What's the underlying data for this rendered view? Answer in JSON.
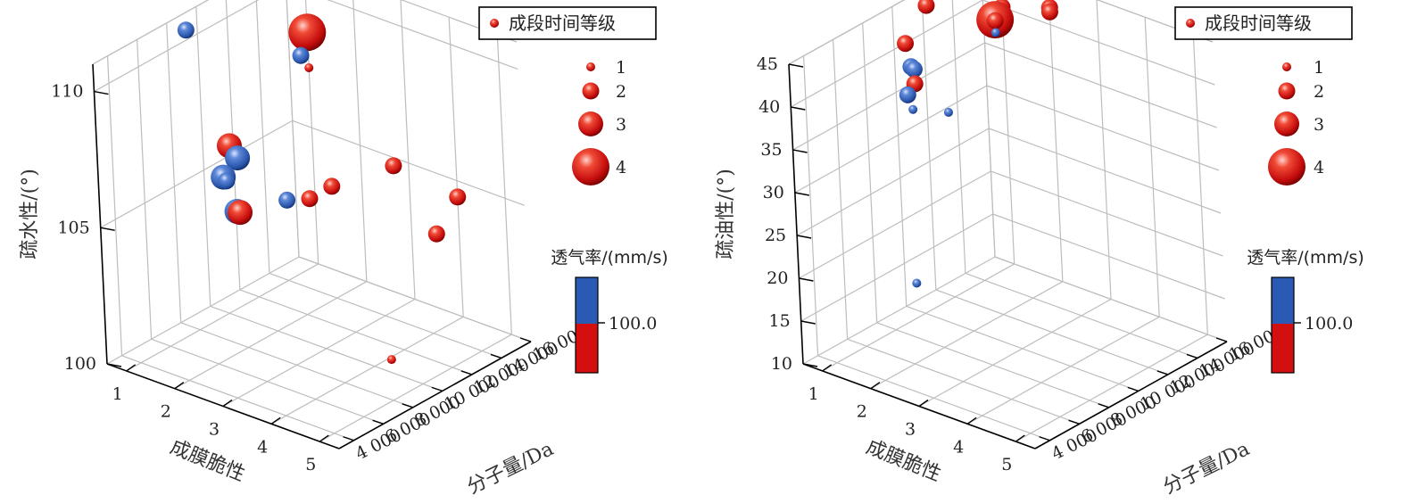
{
  "colors": {
    "high": "#2a5ab3",
    "low": "#d40f10"
  },
  "chart_data": [
    {
      "type": "scatter",
      "subtype": "3d-bubble",
      "xlabel": "成膜脆性",
      "ylabel": "分子量/Da",
      "zlabel": "疏水性/(°)",
      "xticks": [
        "1",
        "2",
        "3",
        "4",
        "5"
      ],
      "yticks": [
        "4 000",
        "6 000",
        "8 000",
        "10 000",
        "12 000",
        "14 000",
        "16 000"
      ],
      "zticks": [
        "100",
        "105",
        "110"
      ],
      "xlim": [
        0.6,
        5.4
      ],
      "ylim": [
        3000,
        16000
      ],
      "zlim": [
        100,
        111
      ],
      "grid": true,
      "legend": {
        "title": "成段时间等级",
        "position": "top-right",
        "sizes": [
          "1",
          "2",
          "3",
          "4"
        ]
      },
      "colorbar": {
        "title": "透气率/(mm/s)",
        "tick": "100.0",
        "above": "blue",
        "below": "red"
      },
      "points": [
        {
          "x": 1,
          "y": 8000,
          "z": 111,
          "size": 2,
          "color": "blue"
        },
        {
          "x": 1,
          "y": 10500,
          "z": 106.0,
          "size": 3,
          "color": "red"
        },
        {
          "x": 1,
          "y": 11000,
          "z": 105.4,
          "size": 3,
          "color": "blue"
        },
        {
          "x": 1,
          "y": 10000,
          "z": 105.0,
          "size": 3,
          "color": "blue"
        },
        {
          "x": 1,
          "y": 10200,
          "z": 104.8,
          "size": 2,
          "color": "blue"
        },
        {
          "x": 1,
          "y": 11000,
          "z": 103.4,
          "size": 3,
          "color": "red"
        },
        {
          "x": 1,
          "y": 10800,
          "z": 103.5,
          "size": 3,
          "color": "blue"
        },
        {
          "x": 2,
          "y": 11000,
          "z": 104.5,
          "size": 2,
          "color": "blue"
        },
        {
          "x": 2,
          "y": 12500,
          "z": 104.1,
          "size": 2,
          "color": "red"
        },
        {
          "x": 1,
          "y": 16000,
          "z": 108.5,
          "size": 4,
          "color": "red"
        },
        {
          "x": 1,
          "y": 16000,
          "z": 108.6,
          "size": 3,
          "color": "red"
        },
        {
          "x": 1,
          "y": 15500,
          "z": 107.8,
          "size": 2,
          "color": "blue"
        },
        {
          "x": 1,
          "y": 16000,
          "z": 107.2,
          "size": 1,
          "color": "red"
        },
        {
          "x": 3,
          "y": 15000,
          "z": 105.2,
          "size": 2,
          "color": "red"
        },
        {
          "x": 2,
          "y": 14000,
          "z": 104.1,
          "size": 2,
          "color": "red"
        },
        {
          "x": 4,
          "y": 16000,
          "z": 104.4,
          "size": 2,
          "color": "red"
        },
        {
          "x": 4,
          "y": 14500,
          "z": 103.5,
          "size": 2,
          "color": "red"
        },
        {
          "x": 5,
          "y": 8000,
          "z": 101.5,
          "size": 1,
          "color": "red"
        }
      ]
    },
    {
      "type": "scatter",
      "subtype": "3d-bubble",
      "xlabel": "成膜脆性",
      "ylabel": "分子量/Da",
      "zlabel": "疏油性/(°)",
      "xticks": [
        "1",
        "2",
        "3",
        "4",
        "5"
      ],
      "yticks": [
        "4 000",
        "6 000",
        "8 000",
        "10 000",
        "12 000",
        "14 000",
        "16 000"
      ],
      "zticks": [
        "10",
        "15",
        "20",
        "25",
        "30",
        "35",
        "40",
        "45"
      ],
      "xlim": [
        0.6,
        5.4
      ],
      "ylim": [
        3000,
        16000
      ],
      "zlim": [
        10,
        45
      ],
      "grid": true,
      "legend": {
        "title": "成段时间等级",
        "position": "top-right",
        "sizes": [
          "1",
          "2",
          "3",
          "4"
        ]
      },
      "colorbar": {
        "title": "透气率/(mm/s)",
        "tick": "100.0",
        "above": "blue",
        "below": "red"
      },
      "points": [
        {
          "x": 1,
          "y": 11000,
          "z": 45,
          "size": 2,
          "color": "red"
        },
        {
          "x": 1,
          "y": 9500,
          "z": 42,
          "size": 2,
          "color": "red"
        },
        {
          "x": 1,
          "y": 9800,
          "z": 39,
          "size": 2,
          "color": "blue"
        },
        {
          "x": 1,
          "y": 10000,
          "z": 38.5,
          "size": 2,
          "color": "blue"
        },
        {
          "x": 1,
          "y": 10000,
          "z": 36.8,
          "size": 2,
          "color": "red"
        },
        {
          "x": 1,
          "y": 9500,
          "z": 36,
          "size": 2,
          "color": "blue"
        },
        {
          "x": 1,
          "y": 9800,
          "z": 34,
          "size": 1,
          "color": "blue"
        },
        {
          "x": 2,
          "y": 9000,
          "z": 36.5,
          "size": 1,
          "color": "blue"
        },
        {
          "x": 1,
          "y": 16000,
          "z": 42.5,
          "size": 3,
          "color": "red"
        },
        {
          "x": 1,
          "y": 16000,
          "z": 41.2,
          "size": 1,
          "color": "red"
        },
        {
          "x": 1,
          "y": 15500,
          "z": 39.0,
          "size": 4,
          "color": "red"
        },
        {
          "x": 1,
          "y": 15500,
          "z": 38.9,
          "size": 2,
          "color": "red"
        },
        {
          "x": 1,
          "y": 15500,
          "z": 37.5,
          "size": 1,
          "color": "blue"
        },
        {
          "x": 1,
          "y": 16000,
          "z": 40.0,
          "size": 2,
          "color": "red"
        },
        {
          "x": 2,
          "y": 16000,
          "z": 42.0,
          "size": 2,
          "color": "red"
        },
        {
          "x": 2,
          "y": 16000,
          "z": 41.5,
          "size": 2,
          "color": "red"
        },
        {
          "x": 1,
          "y": 9500,
          "z": 14,
          "size": 1,
          "color": "blue"
        }
      ]
    }
  ]
}
